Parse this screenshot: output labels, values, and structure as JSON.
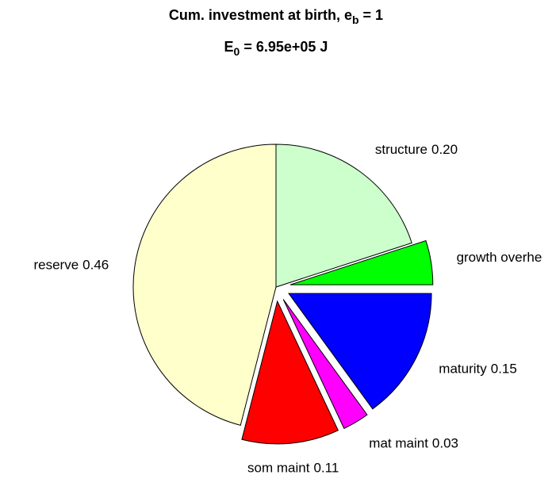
{
  "chart_data": {
    "type": "pie",
    "title": [
      "Cum. investment at birth, e",
      "b",
      " = 1"
    ],
    "subtitle": [
      "E",
      "0",
      " = 6.95e+05 J"
    ],
    "categories": [
      "structure",
      "growth overhe",
      "maturity",
      "mat maint",
      "som maint",
      "reserve"
    ],
    "values": [
      0.2,
      0.05,
      0.15,
      0.03,
      0.11,
      0.46
    ],
    "value_labels": [
      "0.20",
      null,
      "0.15",
      "0.03",
      "0.11",
      "0.46"
    ],
    "colors": [
      "#ccffcc",
      "#00ff00",
      "#0000ff",
      "#ff00ff",
      "#ff0000",
      "#ffffcc"
    ],
    "explode": [
      0,
      1,
      1,
      1,
      1,
      0
    ]
  }
}
